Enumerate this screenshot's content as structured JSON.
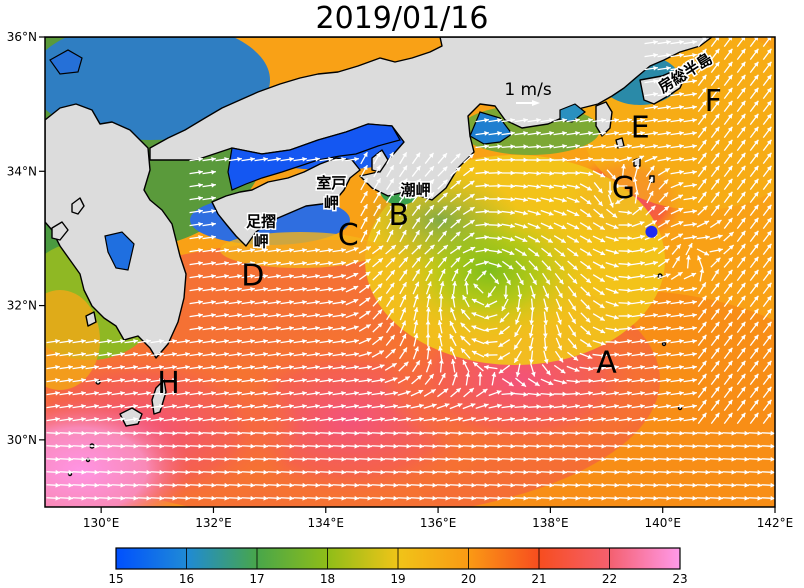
{
  "title": "2019/01/16",
  "map": {
    "lon_range": [
      129,
      142
    ],
    "lat_range": [
      29,
      36
    ],
    "x_ticks": [
      {
        "value": 130,
        "label": "130°E"
      },
      {
        "value": 132,
        "label": "132°E"
      },
      {
        "value": 134,
        "label": "134°E"
      },
      {
        "value": 136,
        "label": "136°E"
      },
      {
        "value": 138,
        "label": "138°E"
      },
      {
        "value": 140,
        "label": "140°E"
      },
      {
        "value": 142,
        "label": "142°E"
      }
    ],
    "y_ticks": [
      {
        "value": 36,
        "label": "36°N"
      },
      {
        "value": 34,
        "label": "34°N"
      },
      {
        "value": 32,
        "label": "32°N"
      },
      {
        "value": 30,
        "label": "30°N"
      }
    ],
    "region_labels": [
      {
        "text": "A",
        "lon": 139.0,
        "lat": 31.0
      },
      {
        "text": "B",
        "lon": 135.3,
        "lat": 33.2
      },
      {
        "text": "C",
        "lon": 134.4,
        "lat": 32.9
      },
      {
        "text": "D",
        "lon": 132.7,
        "lat": 32.3
      },
      {
        "text": "E",
        "lon": 139.6,
        "lat": 34.5
      },
      {
        "text": "F",
        "lon": 140.9,
        "lat": 34.9
      },
      {
        "text": "G",
        "lon": 139.3,
        "lat": 33.6
      },
      {
        "text": "H",
        "lon": 131.2,
        "lat": 30.7
      }
    ],
    "place_labels": [
      {
        "text": "室戸",
        "lon": 134.1,
        "lat": 33.75
      },
      {
        "text": "岬",
        "lon": 134.1,
        "lat": 33.45
      },
      {
        "text": "潮岬",
        "lon": 135.6,
        "lat": 33.65
      },
      {
        "text": "足摺",
        "lon": 132.85,
        "lat": 33.18
      },
      {
        "text": "岬",
        "lon": 132.85,
        "lat": 32.88
      },
      {
        "text": "房総半島",
        "lon": 140.45,
        "lat": 35.4
      }
    ],
    "reference_vector": {
      "label": "1 m/s",
      "speed": 1.0
    },
    "buoy_marker": {
      "lon": 139.8,
      "lat": 33.1,
      "color": "#1e2cf0"
    }
  },
  "colorbar": {
    "min": 15,
    "max": 23,
    "ticks": [
      "15",
      "16",
      "17",
      "18",
      "19",
      "20",
      "21",
      "22",
      "23"
    ],
    "colors": [
      "#0050ff",
      "#1f8ad6",
      "#48a64a",
      "#8fbd18",
      "#f0c418",
      "#fa9a14",
      "#f74d1f",
      "#f4606f",
      "#ff9aea"
    ]
  },
  "colors": {
    "land": "#dcdcdc",
    "coast": "#000000",
    "vector": "#ffffff"
  }
}
